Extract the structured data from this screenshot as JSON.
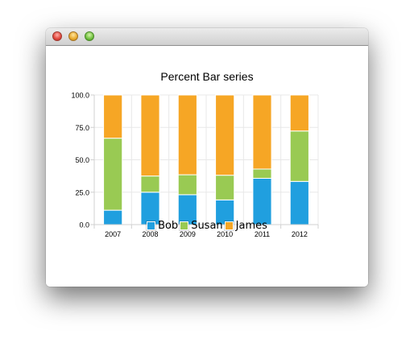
{
  "window": {
    "controls": {
      "close": "close-button",
      "minimize": "minimize-button",
      "zoom": "zoom-button"
    }
  },
  "chart_data": {
    "type": "bar",
    "stacked": "percent",
    "title": "Percent Bar series",
    "xlabel": "",
    "ylabel": "",
    "categories": [
      "2007",
      "2008",
      "2009",
      "2010",
      "2011",
      "2012"
    ],
    "ylim": [
      0,
      100
    ],
    "yticks": [
      "0.0",
      "25.0",
      "50.0",
      "75.0",
      "100.0"
    ],
    "grid": true,
    "legend_position": "bottom",
    "series": [
      {
        "name": "Bob",
        "color": "#209fdf",
        "values": [
          1,
          2,
          3,
          4,
          5,
          6
        ]
      },
      {
        "name": "Susan",
        "color": "#99ca53",
        "values": [
          5,
          1,
          2,
          4,
          1,
          7
        ]
      },
      {
        "name": "James",
        "color": "#f6a625",
        "values": [
          3,
          5,
          8,
          13,
          8,
          5
        ]
      }
    ]
  }
}
